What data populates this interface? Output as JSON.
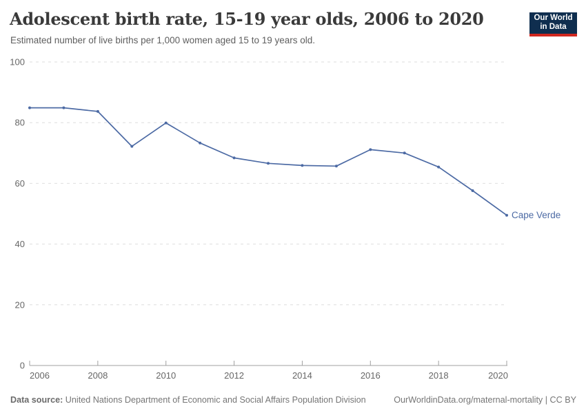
{
  "header": {
    "title": "Adolescent birth rate, 15-19 year olds, 2006 to 2020",
    "subtitle": "Estimated number of live births per 1,000 women aged 15 to 19 years old.",
    "logo": {
      "line1": "Our World",
      "line2": "in Data"
    }
  },
  "chart_data": {
    "type": "line",
    "title": "Adolescent birth rate, 15-19 year olds, 2006 to 2020",
    "x": [
      2006,
      2007,
      2008,
      2009,
      2010,
      2011,
      2012,
      2013,
      2014,
      2015,
      2016,
      2017,
      2018,
      2019,
      2020
    ],
    "series": [
      {
        "name": "Cape Verde",
        "values": [
          84.9,
          84.9,
          83.7,
          72.2,
          79.9,
          73.3,
          68.4,
          66.6,
          65.9,
          65.7,
          71.1,
          70.0,
          65.4,
          57.6,
          49.5
        ]
      }
    ],
    "xlabel": "",
    "ylabel": "",
    "ylim": [
      0,
      100
    ],
    "xlim": [
      2006,
      2020
    ],
    "yticks": [
      0,
      20,
      40,
      60,
      80,
      100
    ],
    "xticks": [
      2006,
      2008,
      2010,
      2012,
      2014,
      2016,
      2018,
      2020
    ],
    "grid": "horizontal-dashed",
    "legend": "end-of-line-label",
    "end_label": "Cape Verde"
  },
  "footer": {
    "source_label": "Data source:",
    "source_text": "United Nations Department of Economic and Social Affairs Population Division",
    "link_text": "OurWorldinData.org/maternal-mortality | CC BY"
  },
  "colors": {
    "line": "#4c6aa4",
    "end_label": "#4c6aa4",
    "gridline": "#dedede",
    "axis": "#a0a0a0",
    "tick_label": "#666666",
    "logo_navy": "#0f2e4f",
    "logo_red": "#d0271f"
  }
}
